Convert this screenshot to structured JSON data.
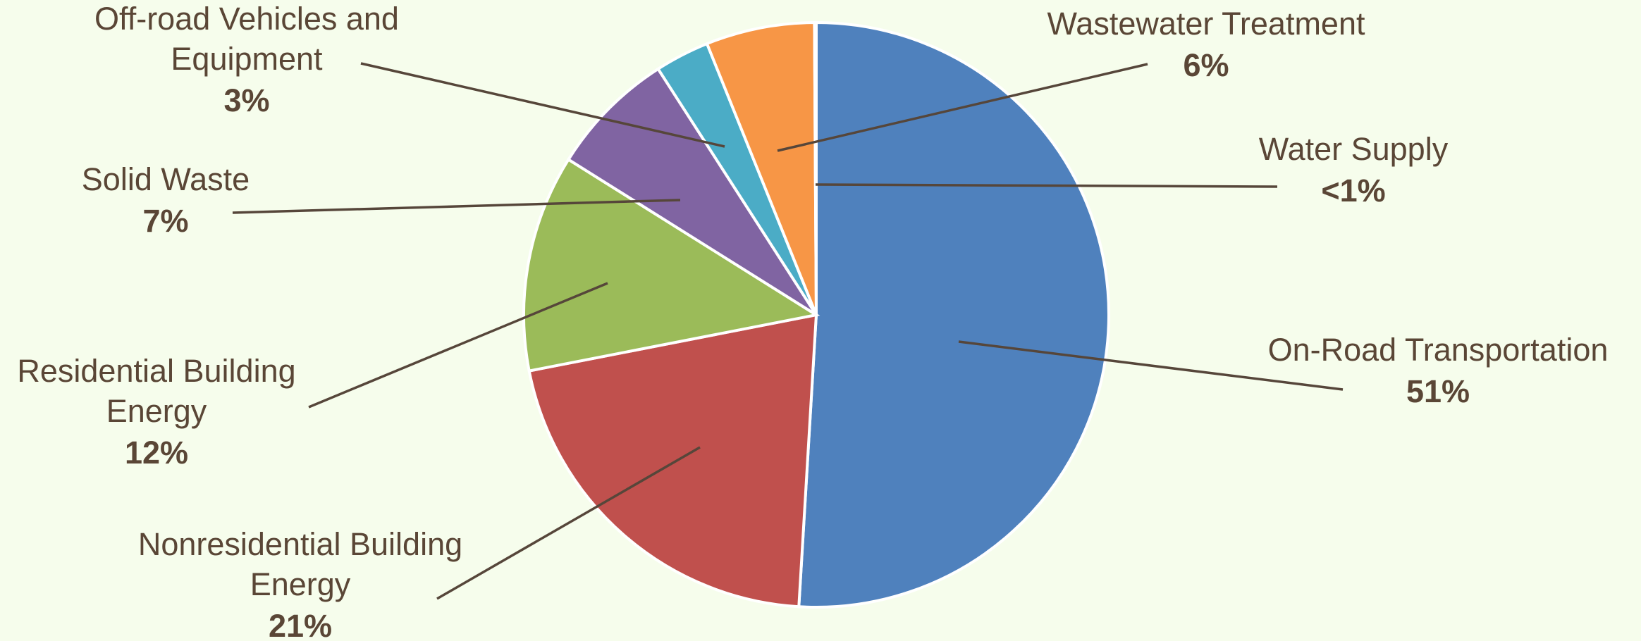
{
  "chart_data": {
    "type": "pie",
    "start_angle_deg": 0,
    "direction": "clockwise",
    "slices": [
      {
        "name": "On-Road Transportation",
        "label_lines": [
          "On-Road Transportation"
        ],
        "value": 51,
        "pct_label": "51%",
        "color": "#4F81BD"
      },
      {
        "name": "Nonresidential Building Energy",
        "label_lines": [
          "Nonresidential Building",
          "Energy"
        ],
        "value": 21,
        "pct_label": "21%",
        "color": "#C0504D"
      },
      {
        "name": "Residential Building Energy",
        "label_lines": [
          "Residential Building",
          "Energy"
        ],
        "value": 12,
        "pct_label": "12%",
        "color": "#9BBB59"
      },
      {
        "name": "Solid Waste",
        "label_lines": [
          "Solid Waste"
        ],
        "value": 7,
        "pct_label": "7%",
        "color": "#8064A2"
      },
      {
        "name": "Off-road Vehicles and Equipment",
        "label_lines": [
          "Off-road Vehicles and",
          "Equipment"
        ],
        "value": 3,
        "pct_label": "3%",
        "color": "#4BACC6"
      },
      {
        "name": "Wastewater Treatment",
        "label_lines": [
          "Wastewater Treatment"
        ],
        "value": 6,
        "pct_label": "6%",
        "color": "#F79646"
      },
      {
        "name": "Water Supply",
        "label_lines": [
          "Water Supply"
        ],
        "value": 0.1,
        "pct_label": "<1%",
        "color": "#2C4D75"
      }
    ]
  },
  "background_color": "#F6FDEC"
}
